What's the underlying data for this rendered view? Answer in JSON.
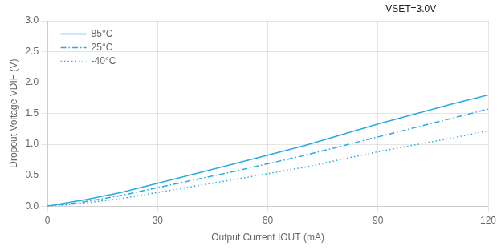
{
  "chart_data": {
    "type": "line",
    "xlabel": "Output Current IOUT (mA)",
    "ylabel": "Dropout Voltage VDIF (V)",
    "annotation": "VSET=3.0V",
    "x": [
      0,
      5,
      10,
      20,
      30,
      50,
      70,
      90,
      110,
      120
    ],
    "series": [
      {
        "name": "85°C",
        "color": "#29ABE2",
        "line_style": "solid",
        "values": [
          0.0,
          0.05,
          0.1,
          0.22,
          0.37,
          0.67,
          0.98,
          1.33,
          1.65,
          1.8
        ]
      },
      {
        "name": "25°C",
        "color": "#29ABE2",
        "line_style": "dashdot",
        "values": [
          0.0,
          0.03,
          0.07,
          0.17,
          0.3,
          0.55,
          0.82,
          1.12,
          1.42,
          1.57
        ]
      },
      {
        "name": "-40°C",
        "color": "#29ABE2",
        "line_style": "dotted",
        "values": [
          0.0,
          0.02,
          0.05,
          0.12,
          0.22,
          0.42,
          0.63,
          0.88,
          1.1,
          1.22
        ]
      }
    ],
    "xlim": [
      0,
      120
    ],
    "ylim": [
      0,
      3.0
    ],
    "xticks": [
      0,
      30,
      60,
      90,
      120
    ],
    "yticks": [
      {
        "value": 0,
        "label": "0.0"
      },
      {
        "value": 0.5,
        "label": "0.5"
      },
      {
        "value": 1.0,
        "label": "1.0"
      },
      {
        "value": 1.5,
        "label": "1.5"
      },
      {
        "value": 2.0,
        "label": "2.0"
      },
      {
        "value": 2.5,
        "label": "2.5"
      },
      {
        "value": 3.0,
        "label": "3.0"
      }
    ],
    "grid": true,
    "legend": "upper left"
  }
}
